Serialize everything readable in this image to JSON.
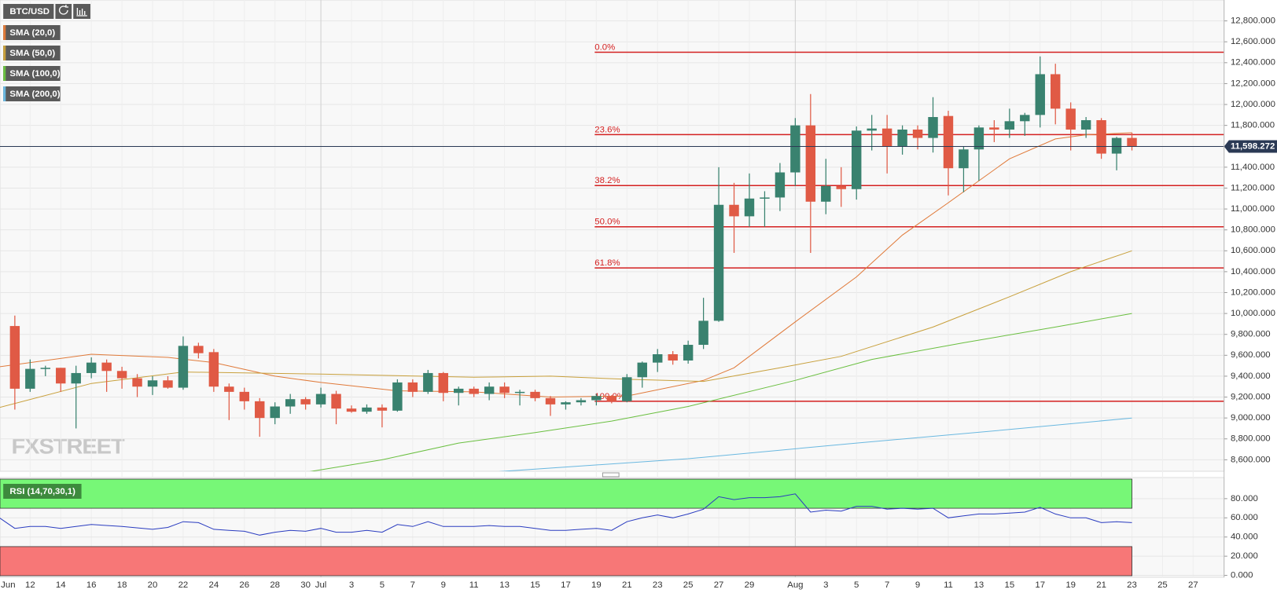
{
  "chart_data": [
    {
      "type": "candlestick",
      "title": "BTC/USD",
      "watermark": "FXSTREET",
      "up_color": "#39826f",
      "down_color": "#e05a45",
      "x": [
        "Jun 11",
        "Jun 12",
        "Jun 13",
        "Jun 14",
        "Jun 15",
        "Jun 16",
        "Jun 17",
        "Jun 18",
        "Jun 19",
        "Jun 20",
        "Jun 21",
        "Jun 22",
        "Jun 23",
        "Jun 24",
        "Jun 25",
        "Jun 26",
        "Jun 27",
        "Jun 28",
        "Jun 29",
        "Jun 30",
        "Jul 1",
        "Jul 2",
        "Jul 3",
        "Jul 4",
        "Jul 5",
        "Jul 6",
        "Jul 7",
        "Jul 8",
        "Jul 9",
        "Jul 10",
        "Jul 11",
        "Jul 12",
        "Jul 13",
        "Jul 14",
        "Jul 15",
        "Jul 16",
        "Jul 17",
        "Jul 18",
        "Jul 19",
        "Jul 20",
        "Jul 21",
        "Jul 22",
        "Jul 23",
        "Jul 24",
        "Jul 25",
        "Jul 26",
        "Jul 27",
        "Jul 28",
        "Jul 29",
        "Jul 30",
        "Jul 31",
        "Aug 1",
        "Aug 2",
        "Aug 3",
        "Aug 4",
        "Aug 5",
        "Aug 6",
        "Aug 7",
        "Aug 8",
        "Aug 9",
        "Aug 10",
        "Aug 11",
        "Aug 12",
        "Aug 13",
        "Aug 14",
        "Aug 15",
        "Aug 16",
        "Aug 17",
        "Aug 18",
        "Aug 19",
        "Aug 20",
        "Aug 21",
        "Aug 22",
        "Aug 23"
      ],
      "open": [
        9880,
        9280,
        9470,
        9480,
        9330,
        9430,
        9530,
        9450,
        9380,
        9300,
        9360,
        9290,
        9690,
        9630,
        9300,
        9250,
        9160,
        9000,
        9110,
        9180,
        9130,
        9230,
        9090,
        9060,
        9100,
        9070,
        9340,
        9250,
        9430,
        9240,
        9280,
        9230,
        9300,
        9240,
        9250,
        9190,
        9130,
        9150,
        9170,
        9210,
        9160,
        9390,
        9530,
        9610,
        9550,
        9700,
        9930,
        11040,
        10930,
        11100,
        11110,
        11350,
        11800,
        11070,
        11220,
        11190,
        11750,
        11770,
        11600,
        11760,
        11680,
        11890,
        11390,
        11570,
        11780,
        11760,
        11840,
        11900,
        12290,
        11960,
        11760,
        11850,
        11530,
        11680
      ],
      "high": [
        9980,
        9560,
        9500,
        9480,
        9500,
        9580,
        9560,
        9490,
        9420,
        9400,
        9400,
        9780,
        9720,
        9660,
        9330,
        9290,
        9190,
        9150,
        9230,
        9200,
        9290,
        9260,
        9120,
        9130,
        9130,
        9370,
        9370,
        9460,
        9440,
        9300,
        9300,
        9340,
        9340,
        9270,
        9270,
        9210,
        9160,
        9190,
        9230,
        9220,
        9420,
        9540,
        9660,
        9640,
        9740,
        10150,
        11400,
        11250,
        11340,
        11170,
        11440,
        11870,
        12100,
        11480,
        11400,
        11790,
        11900,
        11900,
        11800,
        11800,
        12070,
        11940,
        11600,
        11800,
        11850,
        11960,
        11920,
        12460,
        12390,
        12020,
        11880,
        11870,
        11690,
        11730
      ],
      "low": [
        9080,
        9250,
        9400,
        9250,
        8900,
        9380,
        9250,
        9280,
        9200,
        9220,
        9280,
        9270,
        9570,
        9250,
        8980,
        9080,
        8820,
        8940,
        9040,
        9080,
        9100,
        8940,
        9050,
        9040,
        8910,
        9060,
        9200,
        9230,
        9160,
        9120,
        9200,
        9170,
        9190,
        9120,
        9160,
        9020,
        9080,
        9120,
        9120,
        9140,
        9150,
        9290,
        9440,
        9510,
        9520,
        9660,
        9920,
        10580,
        10830,
        10830,
        10980,
        11220,
        10580,
        10950,
        11020,
        11090,
        11560,
        11340,
        11520,
        11570,
        11540,
        11130,
        11160,
        11270,
        11640,
        11680,
        11700,
        11780,
        11810,
        11560,
        11680,
        11480,
        11370,
        11560
      ],
      "close": [
        9280,
        9470,
        9480,
        9330,
        9430,
        9530,
        9450,
        9380,
        9300,
        9360,
        9290,
        9690,
        9620,
        9300,
        9250,
        9160,
        9000,
        9110,
        9180,
        9130,
        9230,
        9090,
        9060,
        9100,
        9070,
        9340,
        9250,
        9430,
        9240,
        9280,
        9230,
        9300,
        9240,
        9250,
        9190,
        9130,
        9150,
        9170,
        9210,
        9160,
        9390,
        9530,
        9610,
        9550,
        9700,
        9930,
        11040,
        10930,
        11100,
        11110,
        11350,
        11800,
        11070,
        11220,
        11190,
        11750,
        11770,
        11600,
        11760,
        11680,
        11880,
        11390,
        11570,
        11780,
        11760,
        11840,
        11900,
        12290,
        11960,
        11760,
        11850,
        11530,
        11680,
        11598.272
      ],
      "overlays": [
        {
          "name": "SMA (20,0)",
          "color": "#e07a3a",
          "x": [
            "Jun 10",
            "Jun 16",
            "Jun 21",
            "Jun 24",
            "Jun 28",
            "Jul 1",
            "Jul 6",
            "Jul 11",
            "Jul 16",
            "Jul 21",
            "Jul 26",
            "Jul 28",
            "Aug 1",
            "Aug 5",
            "Aug 8",
            "Aug 11",
            "Aug 15",
            "Aug 18",
            "Aug 20",
            "Aug 23"
          ],
          "values": [
            9490,
            9610,
            9580,
            9530,
            9400,
            9340,
            9260,
            9250,
            9200,
            9210,
            9360,
            9480,
            9920,
            10350,
            10750,
            11060,
            11480,
            11670,
            11710,
            11730
          ]
        },
        {
          "name": "SMA (50,0)",
          "color": "#c8a03c",
          "x": [
            "Jun 10",
            "Jun 16",
            "Jun 22",
            "Jul 1",
            "Jul 11",
            "Jul 16",
            "Jul 21",
            "Jul 26",
            "Jul 31",
            "Aug 4",
            "Aug 10",
            "Aug 15",
            "Aug 19",
            "Aug 23"
          ],
          "values": [
            9100,
            9330,
            9440,
            9420,
            9390,
            9400,
            9370,
            9350,
            9480,
            9590,
            9870,
            10160,
            10400,
            10600
          ]
        },
        {
          "name": "SMA (100,0)",
          "color": "#6abf40",
          "x": [
            "Jun 30",
            "Jul 5",
            "Jul 10",
            "Jul 15",
            "Jul 20",
            "Jul 25",
            "Aug 1",
            "Aug 6",
            "Aug 12",
            "Aug 18",
            "Aug 23"
          ],
          "values": [
            8480,
            8600,
            8760,
            8860,
            8970,
            9110,
            9360,
            9560,
            9720,
            9870,
            10000
          ]
        },
        {
          "name": "SMA (200,0)",
          "color": "#6ab8e0",
          "x": [
            "Jul 12",
            "Jul 25",
            "Aug 5",
            "Aug 15",
            "Aug 23"
          ],
          "values": [
            8480,
            8610,
            8760,
            8890,
            9000
          ]
        }
      ],
      "levels": [
        {
          "value": 12500,
          "label": "0.0%"
        },
        {
          "value": 11712,
          "label": "23.6%"
        },
        {
          "value": 11224,
          "label": "38.2%"
        },
        {
          "value": 10830,
          "label": "50.0%"
        },
        {
          "value": 10436,
          "label": "61.8%"
        },
        {
          "value": 9160,
          "label": "100.0%"
        }
      ],
      "level_color": "#d42020",
      "last_price": {
        "value": 11598.272,
        "label": "11,598.272"
      },
      "ylim": [
        8490,
        13000
      ],
      "yticks": [
        {
          "value": 8600,
          "label": "8,600.000"
        },
        {
          "value": 8800,
          "label": "8,800.000"
        },
        {
          "value": 9000,
          "label": "9,000.000"
        },
        {
          "value": 9200,
          "label": "9,200.000"
        },
        {
          "value": 9400,
          "label": "9,400.000"
        },
        {
          "value": 9600,
          "label": "9,600.000"
        },
        {
          "value": 9800,
          "label": "9,800.000"
        },
        {
          "value": 10000,
          "label": "10,000.000"
        },
        {
          "value": 10200,
          "label": "10,200.000"
        },
        {
          "value": 10400,
          "label": "10,400.000"
        },
        {
          "value": 10600,
          "label": "10,600.000"
        },
        {
          "value": 10800,
          "label": "10,800.000"
        },
        {
          "value": 11000,
          "label": "11,000.000"
        },
        {
          "value": 11200,
          "label": "11,200.000"
        },
        {
          "value": 11400,
          "label": "11,400.000"
        },
        {
          "value": 11600,
          "label": "11,600.000"
        },
        {
          "value": 11800,
          "label": "11,800.000"
        },
        {
          "value": 12000,
          "label": "12,000.000"
        },
        {
          "value": 12200,
          "label": "12,200.000"
        },
        {
          "value": 12400,
          "label": "12,400.000"
        },
        {
          "value": 12600,
          "label": "12,600.000"
        },
        {
          "value": 12800,
          "label": "12,800.000"
        }
      ],
      "xticks": [
        {
          "value": "Jun 10",
          "label": "Jun"
        },
        {
          "value": "Jun 12",
          "label": "12"
        },
        {
          "value": "Jun 14",
          "label": "14"
        },
        {
          "value": "Jun 16",
          "label": "16"
        },
        {
          "value": "Jun 18",
          "label": "18"
        },
        {
          "value": "Jun 20",
          "label": "20"
        },
        {
          "value": "Jun 22",
          "label": "22"
        },
        {
          "value": "Jun 24",
          "label": "24"
        },
        {
          "value": "Jun 26",
          "label": "26"
        },
        {
          "value": "Jun 28",
          "label": "28"
        },
        {
          "value": "Jun 30",
          "label": "30"
        },
        {
          "value": "Jul 1",
          "label": "Jul"
        },
        {
          "value": "Jul 3",
          "label": "3"
        },
        {
          "value": "Jul 5",
          "label": "5"
        },
        {
          "value": "Jul 7",
          "label": "7"
        },
        {
          "value": "Jul 9",
          "label": "9"
        },
        {
          "value": "Jul 11",
          "label": "11"
        },
        {
          "value": "Jul 13",
          "label": "13"
        },
        {
          "value": "Jul 15",
          "label": "15"
        },
        {
          "value": "Jul 17",
          "label": "17"
        },
        {
          "value": "Jul 19",
          "label": "19"
        },
        {
          "value": "Jul 21",
          "label": "21"
        },
        {
          "value": "Jul 23",
          "label": "23"
        },
        {
          "value": "Jul 25",
          "label": "25"
        },
        {
          "value": "Jul 27",
          "label": "27"
        },
        {
          "value": "Jul 29",
          "label": "29"
        },
        {
          "value": "Aug 1",
          "label": "Aug"
        },
        {
          "value": "Aug 3",
          "label": "3"
        },
        {
          "value": "Aug 5",
          "label": "5"
        },
        {
          "value": "Aug 7",
          "label": "7"
        },
        {
          "value": "Aug 9",
          "label": "9"
        },
        {
          "value": "Aug 11",
          "label": "11"
        },
        {
          "value": "Aug 13",
          "label": "13"
        },
        {
          "value": "Aug 15",
          "label": "15"
        },
        {
          "value": "Aug 17",
          "label": "17"
        },
        {
          "value": "Aug 19",
          "label": "19"
        },
        {
          "value": "Aug 21",
          "label": "21"
        },
        {
          "value": "Aug 23",
          "label": "23"
        },
        {
          "value": "Aug 25",
          "label": "25"
        },
        {
          "value": "Aug 27",
          "label": "27"
        }
      ],
      "grid": true
    },
    {
      "type": "line",
      "title": "RSI (14,70,30,1)",
      "color": "#2a3cc0",
      "overbought": 70,
      "oversold": 30,
      "overbought_color": "#77f777",
      "oversold_color": "#f77777",
      "x": [
        "Jun 10",
        "Jun 11",
        "Jun 12",
        "Jun 13",
        "Jun 14",
        "Jun 15",
        "Jun 16",
        "Jun 18",
        "Jun 20",
        "Jun 21",
        "Jun 22",
        "Jun 23",
        "Jun 24",
        "Jun 25",
        "Jun 26",
        "Jun 27",
        "Jun 28",
        "Jun 29",
        "Jun 30",
        "Jul 1",
        "Jul 2",
        "Jul 3",
        "Jul 4",
        "Jul 5",
        "Jul 6",
        "Jul 7",
        "Jul 8",
        "Jul 9",
        "Jul 10",
        "Jul 11",
        "Jul 12",
        "Jul 13",
        "Jul 14",
        "Jul 15",
        "Jul 16",
        "Jul 17",
        "Jul 18",
        "Jul 19",
        "Jul 20",
        "Jul 21",
        "Jul 22",
        "Jul 23",
        "Jul 24",
        "Jul 25",
        "Jul 26",
        "Jul 27",
        "Jul 28",
        "Jul 29",
        "Jul 30",
        "Jul 31",
        "Aug 1",
        "Aug 2",
        "Aug 3",
        "Aug 4",
        "Aug 5",
        "Aug 6",
        "Aug 7",
        "Aug 8",
        "Aug 9",
        "Aug 10",
        "Aug 11",
        "Aug 12",
        "Aug 13",
        "Aug 14",
        "Aug 15",
        "Aug 16",
        "Aug 17",
        "Aug 18",
        "Aug 19",
        "Aug 20",
        "Aug 21",
        "Aug 22",
        "Aug 23"
      ],
      "values": [
        60,
        49,
        51,
        51,
        49,
        51,
        53,
        51,
        48,
        50,
        56,
        55,
        48,
        47,
        46,
        42,
        45,
        47,
        46,
        49,
        45,
        45,
        47,
        45,
        53,
        51,
        56,
        51,
        51,
        51,
        52,
        51,
        51,
        49,
        47,
        47,
        48,
        49,
        47,
        56,
        60,
        63,
        60,
        64,
        69,
        82,
        79,
        81,
        81,
        82,
        85,
        66,
        68,
        67,
        72,
        72,
        69,
        70,
        69,
        70,
        60,
        62,
        64,
        64,
        65,
        66,
        71,
        64,
        60,
        60,
        55,
        56,
        55
      ],
      "ylim": [
        -2,
        102
      ],
      "yticks": [
        {
          "value": 0,
          "label": "0.000"
        },
        {
          "value": 20,
          "label": "20.000"
        },
        {
          "value": 40,
          "label": "40.000"
        },
        {
          "value": 60,
          "label": "60.000"
        },
        {
          "value": 80,
          "label": "80.000"
        }
      ]
    }
  ]
}
